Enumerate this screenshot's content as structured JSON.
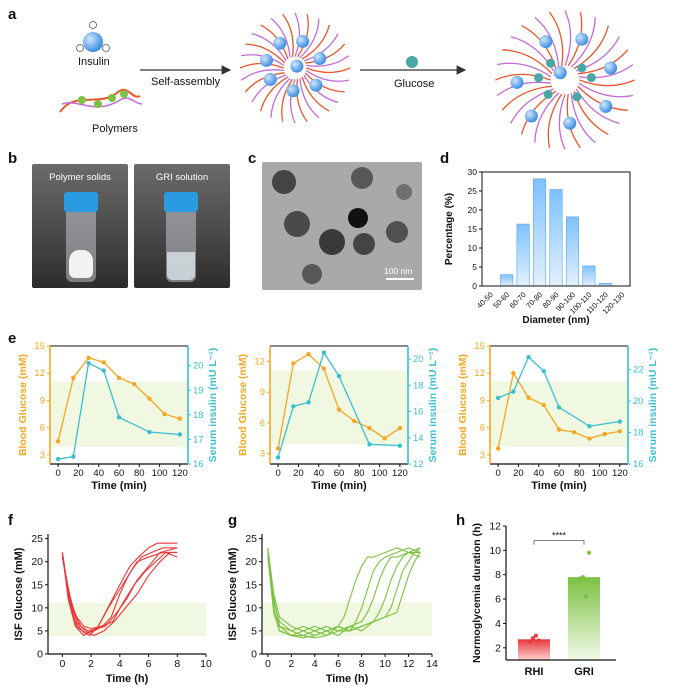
{
  "panels": {
    "a": "a",
    "b": "b",
    "c": "c",
    "d": "d",
    "e": "e",
    "f": "f",
    "g": "g",
    "h": "h"
  },
  "schematic": {
    "insulin_label": "Insulin",
    "polymers_label": "Polymers",
    "self_assembly_label": "Self-assembly",
    "glucose_label": "Glucose"
  },
  "photos": {
    "left_caption": "Polymer solids",
    "right_caption": "GRI solution"
  },
  "tem": {
    "scale_bar": "100 nm"
  },
  "colors": {
    "orange": "#f5a623",
    "cyan": "#3bbfcf",
    "red": "#e8393b",
    "green": "#7cc142",
    "bar_blue": "#9ccfff",
    "band_green": "#f0f8e2"
  },
  "chart_data": [
    {
      "id": "d",
      "type": "bar",
      "categories": [
        "40-50",
        "50-60",
        "60-70",
        "70-80",
        "80-90",
        "90-100",
        "100-110",
        "110-120",
        "120-130"
      ],
      "values": [
        0,
        3,
        16.3,
        28.2,
        25.4,
        18.2,
        5.3,
        0.7,
        0
      ],
      "xlabel": "Diameter (nm)",
      "ylabel": "Percentage (%)",
      "ylim": [
        0,
        30
      ],
      "yticks": [
        0,
        5,
        10,
        15,
        20,
        25,
        30
      ]
    },
    {
      "id": "e1",
      "type": "line",
      "xlabel": "Time (min)",
      "ylabel_left": "Blood Glucose (mM)",
      "ylabel_right": "Serum insulin (mU L⁻¹)",
      "xticks": [
        0,
        20,
        40,
        60,
        80,
        100,
        120
      ],
      "ylim_left": [
        2,
        15
      ],
      "yticks_left": [
        3,
        6,
        9,
        12,
        15
      ],
      "ylim_right": [
        16,
        20.8
      ],
      "yticks_right": [
        16,
        17,
        18,
        19,
        20
      ],
      "normal_band": [
        3.9,
        11.1
      ],
      "series": [
        {
          "axis": "left",
          "x": [
            0,
            15,
            30,
            45,
            60,
            75,
            90,
            105,
            120
          ],
          "y": [
            4.5,
            11.5,
            13.7,
            13.2,
            11.5,
            10.8,
            9.2,
            7.5,
            7.0
          ]
        },
        {
          "axis": "right",
          "x": [
            0,
            15,
            30,
            45,
            60,
            90,
            120
          ],
          "y": [
            16.2,
            16.3,
            20.1,
            19.8,
            17.9,
            17.3,
            17.2
          ]
        }
      ]
    },
    {
      "id": "e2",
      "type": "line",
      "xlabel": "Time (min)",
      "ylabel_left": "Blood Glucose (mM)",
      "ylabel_right": "Serum insulin (mU L⁻¹)",
      "xticks": [
        0,
        20,
        40,
        60,
        80,
        100,
        120
      ],
      "ylim_left": [
        2,
        13.5
      ],
      "yticks_left": [
        3,
        6,
        9,
        12
      ],
      "ylim_right": [
        12,
        21
      ],
      "yticks_right": [
        12,
        14,
        16,
        18,
        20
      ],
      "normal_band": [
        3.9,
        11.1
      ],
      "series": [
        {
          "axis": "left",
          "x": [
            0,
            15,
            30,
            45,
            60,
            75,
            90,
            105,
            120
          ],
          "y": [
            3.5,
            11.8,
            12.7,
            11.3,
            7.3,
            6.2,
            5.5,
            4.5,
            5.5
          ]
        },
        {
          "axis": "right",
          "x": [
            0,
            15,
            30,
            45,
            60,
            90,
            120
          ],
          "y": [
            12.5,
            16.4,
            16.7,
            20.5,
            18.7,
            13.5,
            13.4
          ]
        }
      ]
    },
    {
      "id": "e3",
      "type": "line",
      "xlabel": "Time (min)",
      "ylabel_left": "Blood Glucose (mM)",
      "ylabel_right": "Serum insulin (mU L⁻¹)",
      "xticks": [
        0,
        20,
        40,
        60,
        80,
        100,
        120
      ],
      "ylim_left": [
        2,
        15
      ],
      "yticks_left": [
        3,
        6,
        9,
        12,
        15
      ],
      "ylim_right": [
        16,
        23.5
      ],
      "yticks_right": [
        16,
        18,
        20,
        22
      ],
      "normal_band": [
        3.9,
        11.1
      ],
      "series": [
        {
          "axis": "left",
          "x": [
            0,
            15,
            30,
            45,
            60,
            75,
            90,
            105,
            120
          ],
          "y": [
            3.7,
            12.0,
            9.3,
            8.5,
            5.8,
            5.5,
            4.8,
            5.3,
            5.6
          ]
        },
        {
          "axis": "right",
          "x": [
            0,
            15,
            30,
            45,
            60,
            90,
            120
          ],
          "y": [
            20.2,
            20.6,
            22.8,
            21.9,
            19.6,
            18.4,
            18.7
          ]
        }
      ]
    },
    {
      "id": "f",
      "type": "line",
      "xlabel": "Time (h)",
      "ylabel": "ISF Glucose (mM)",
      "xlim": [
        -1,
        10
      ],
      "xticks": [
        0,
        2,
        4,
        6,
        8,
        10
      ],
      "ylim": [
        0,
        26
      ],
      "yticks": [
        0,
        5,
        10,
        15,
        20,
        25
      ],
      "normal_band": [
        3.9,
        11.1
      ],
      "series": [
        {
          "x": [
            0,
            0.4,
            0.9,
            1.5,
            2.0,
            2.5,
            3.0,
            3.5,
            4.0,
            4.7,
            5.3,
            6.0,
            6.6,
            7.2,
            8.0
          ],
          "y": [
            22,
            12,
            6,
            4,
            5,
            6,
            9,
            12,
            15,
            19,
            21,
            23,
            24,
            24,
            24
          ]
        },
        {
          "x": [
            0,
            0.4,
            0.9,
            1.4,
            1.9,
            2.5,
            3.2,
            4.0,
            4.8,
            5.5,
            6.2,
            7.0,
            8.0
          ],
          "y": [
            22,
            13,
            7,
            5,
            4,
            6,
            10,
            14,
            18,
            21,
            22,
            23,
            23
          ]
        },
        {
          "x": [
            0,
            0.5,
            1.0,
            1.6,
            2.2,
            2.8,
            3.4,
            4.0,
            4.6,
            5.2,
            6.0,
            7.0,
            8.0
          ],
          "y": [
            22,
            11,
            6,
            4.5,
            5,
            6,
            8,
            13,
            17,
            20,
            21,
            22,
            22
          ]
        },
        {
          "x": [
            0,
            0.5,
            1.0,
            1.5,
            2.0,
            2.7,
            3.5,
            4.2,
            5.0,
            5.8,
            6.5,
            7.2,
            8.0
          ],
          "y": [
            21,
            12,
            8,
            6,
            5.5,
            6,
            7,
            11,
            15,
            18,
            20,
            22,
            21
          ]
        },
        {
          "x": [
            0,
            0.4,
            0.8,
            1.3,
            1.8,
            2.4,
            3.0,
            3.8,
            4.5,
            5.2,
            6.0,
            6.8,
            8.0
          ],
          "y": [
            22,
            14,
            9,
            6,
            5,
            5.5,
            6,
            9,
            12,
            16,
            19,
            22,
            23
          ]
        },
        {
          "x": [
            0,
            0.5,
            1.0,
            1.6,
            2.2,
            2.9,
            3.6,
            4.4,
            5.2,
            6.0,
            6.8,
            7.5,
            8.0
          ],
          "y": [
            21,
            13,
            7,
            5,
            4,
            5,
            7,
            10,
            13,
            17,
            20,
            22,
            22
          ]
        }
      ]
    },
    {
      "id": "g",
      "type": "line",
      "xlabel": "Time (h)",
      "ylabel": "ISF Glucose (mM)",
      "xlim": [
        -0.5,
        14
      ],
      "xticks": [
        0,
        2,
        4,
        6,
        8,
        10,
        12,
        14
      ],
      "ylim": [
        0,
        26
      ],
      "yticks": [
        0,
        5,
        10,
        15,
        20,
        25
      ],
      "normal_band": [
        3.9,
        11.1
      ],
      "series": [
        {
          "x": [
            0,
            0.5,
            1,
            2,
            3,
            4,
            5,
            6,
            6.5,
            7,
            7.5,
            8,
            8.5,
            9,
            10,
            11,
            12,
            13
          ],
          "y": [
            23,
            12,
            6,
            4,
            5,
            4,
            5,
            6,
            8,
            12,
            16,
            19,
            21,
            21,
            22,
            23,
            22,
            22
          ]
        },
        {
          "x": [
            0,
            0.5,
            1,
            2,
            3,
            4,
            5,
            6,
            7,
            7.5,
            8,
            8.5,
            9,
            9.5,
            10,
            11,
            12,
            13
          ],
          "y": [
            22,
            10,
            5,
            4,
            4,
            3.5,
            4,
            5,
            5,
            7,
            10,
            14,
            18,
            20,
            21,
            22,
            23,
            22
          ]
        },
        {
          "x": [
            0,
            0.5,
            1,
            2,
            3,
            4,
            5,
            6,
            7,
            8,
            8.5,
            9,
            9.5,
            10,
            10.5,
            11,
            12,
            13
          ],
          "y": [
            22,
            12,
            6,
            5,
            4,
            5,
            6,
            5,
            6,
            7,
            9,
            12,
            16,
            19,
            21,
            21,
            22,
            21
          ]
        },
        {
          "x": [
            0,
            0.5,
            1,
            2,
            3,
            4,
            5,
            6,
            7,
            8,
            9,
            9.5,
            10,
            10.5,
            11,
            11.5,
            12,
            13
          ],
          "y": [
            21,
            9,
            5,
            4,
            3.5,
            4,
            5,
            6,
            5,
            6,
            7,
            9,
            12,
            16,
            19,
            21,
            22,
            23
          ]
        },
        {
          "x": [
            0,
            0.5,
            1,
            2,
            3,
            4,
            5,
            6,
            7,
            8,
            9,
            10,
            10.5,
            11,
            11.5,
            12,
            12.5,
            13
          ],
          "y": [
            22,
            11,
            7,
            5,
            6,
            5,
            4,
            6,
            5,
            6,
            7,
            8,
            10,
            14,
            18,
            20,
            22,
            23
          ]
        },
        {
          "x": [
            0,
            0.5,
            1,
            2,
            3,
            4,
            5,
            6,
            7,
            8,
            9,
            10,
            11,
            11.5,
            12,
            12.5,
            13
          ],
          "y": [
            23,
            13,
            8,
            6,
            5,
            6,
            5,
            4,
            6,
            5,
            7,
            8,
            9,
            13,
            17,
            20,
            22
          ]
        }
      ]
    },
    {
      "id": "h",
      "type": "bar",
      "categories": [
        "RHI",
        "GRI"
      ],
      "values": [
        2.7,
        7.8
      ],
      "points": [
        [
          2.5,
          2.8,
          3.0,
          2.6
        ],
        [
          7.7,
          7.8,
          6.2,
          9.8
        ]
      ],
      "ylabel": "Normoglycemia duration (h)",
      "ylim": [
        1,
        12
      ],
      "yticks": [
        2,
        4,
        6,
        8,
        10,
        12
      ],
      "significance": "****"
    }
  ]
}
